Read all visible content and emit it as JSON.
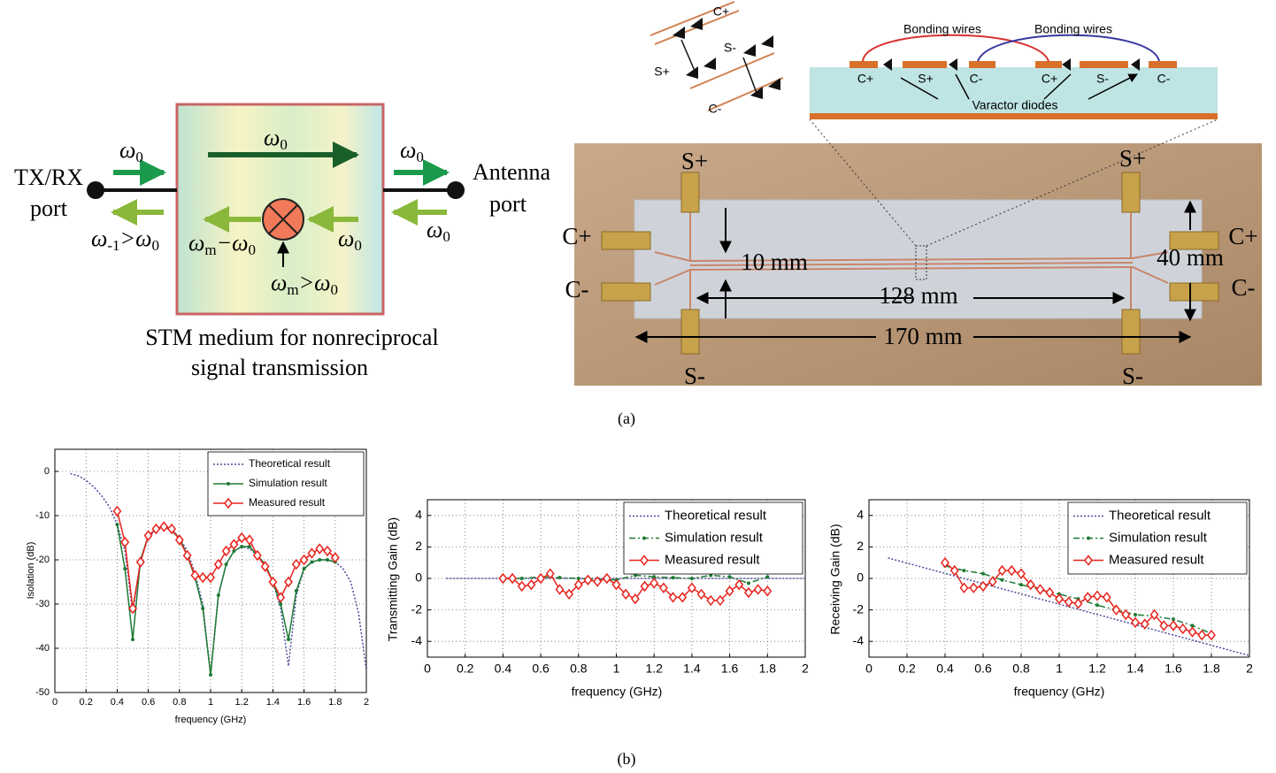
{
  "diagram": {
    "left_port": [
      "TX/RX",
      "port"
    ],
    "right_port": [
      "Antenna",
      "port"
    ],
    "omegas": [
      [
        {
          "t": "ω"
        },
        {
          "sub": "0"
        }
      ],
      [
        {
          "t": "ω"
        },
        {
          "sub": "-1"
        },
        {
          "t": ">ω"
        },
        {
          "sub": "0"
        }
      ],
      [
        {
          "t": "ω"
        },
        {
          "sub": "0"
        }
      ],
      [
        {
          "t": "ω"
        },
        {
          "sub": "m"
        },
        {
          "t": "−ω"
        },
        {
          "sub": "0"
        }
      ],
      [
        {
          "t": "ω"
        },
        {
          "sub": "0"
        }
      ],
      [
        {
          "t": "ω"
        },
        {
          "sub": "m"
        },
        {
          "t": ">ω"
        },
        {
          "sub": "0"
        }
      ],
      [
        {
          "t": "ω"
        },
        {
          "sub": "0"
        }
      ],
      [
        {
          "t": "ω"
        },
        {
          "sub": "0"
        }
      ]
    ],
    "caption": [
      "STM  medium for nonreciprocal",
      "signal transmission"
    ],
    "photo_labels": [
      "S+",
      "S+",
      "C+",
      "C-",
      "C+",
      "C-",
      "S-",
      "S-",
      "10 mm",
      "128 mm",
      "40 mm",
      "170 mm"
    ],
    "inset_left_labels": [
      "C+",
      "S-",
      "S+",
      "C-"
    ],
    "inset_right_labels": [
      "Bonding wires",
      "Bonding wires",
      "C+",
      "S+",
      "C-",
      "C+",
      "S-",
      "C-",
      "Varactor diodes"
    ],
    "caption_a": "(a)",
    "caption_b": "(b)"
  },
  "chart_data": [
    {
      "type": "line",
      "xlabel": "frequency (GHz)",
      "ylabel": "Isolation (dB)",
      "xlim": [
        0,
        2
      ],
      "xticks": [
        0,
        0.2,
        0.4,
        0.6,
        0.8,
        1,
        1.2,
        1.4,
        1.6,
        1.8,
        2
      ],
      "ylim": [
        -50,
        5
      ],
      "yticks": [
        0,
        -10,
        -20,
        -30,
        -40,
        -50
      ],
      "grid": true,
      "legend": "upper right",
      "series": [
        {
          "name": "Theoretical result",
          "color": "#4b4b9c",
          "style": "dotted",
          "marker": "none",
          "x": [
            0.1,
            0.15,
            0.2,
            0.25,
            0.3,
            0.35,
            0.4,
            0.45,
            0.5,
            0.55,
            0.6,
            0.65,
            0.7,
            0.75,
            0.8,
            0.85,
            0.9,
            0.95,
            1.0,
            1.05,
            1.1,
            1.15,
            1.2,
            1.25,
            1.3,
            1.35,
            1.4,
            1.45,
            1.5,
            1.55,
            1.6,
            1.65,
            1.7,
            1.75,
            1.8,
            1.85,
            1.9,
            1.95,
            2.0
          ],
          "values": [
            -0.5,
            -1,
            -2,
            -3.5,
            -5.5,
            -8,
            -12,
            -18,
            -32,
            -20,
            -15,
            -13,
            -12.5,
            -13,
            -15,
            -18,
            -23,
            -30,
            -46,
            -28,
            -21,
            -18,
            -17,
            -17.5,
            -19,
            -21,
            -25,
            -31,
            -44,
            -28,
            -22,
            -20.5,
            -20,
            -20,
            -20.5,
            -22,
            -25,
            -32,
            -45
          ]
        },
        {
          "name": "Simulation result",
          "color": "#1e7a34",
          "style": "solid",
          "marker": "dot",
          "x": [
            0.4,
            0.45,
            0.5,
            0.55,
            0.6,
            0.65,
            0.7,
            0.75,
            0.8,
            0.85,
            0.9,
            0.95,
            1.0,
            1.05,
            1.1,
            1.15,
            1.2,
            1.25,
            1.3,
            1.35,
            1.4,
            1.45,
            1.5,
            1.55,
            1.6,
            1.65,
            1.7,
            1.75,
            1.8
          ],
          "values": [
            -12,
            -22,
            -38,
            -20,
            -14.5,
            -13,
            -12.5,
            -13.5,
            -15,
            -19,
            -24,
            -31,
            -46,
            -28,
            -21,
            -18,
            -17,
            -17,
            -19,
            -21,
            -25,
            -30,
            -38,
            -27,
            -22,
            -20.5,
            -20,
            -20,
            -20.5
          ]
        },
        {
          "name": "Measured result",
          "color": "#e8231d",
          "style": "solid",
          "marker": "diamond",
          "x": [
            0.4,
            0.45,
            0.5,
            0.55,
            0.6,
            0.65,
            0.7,
            0.75,
            0.8,
            0.85,
            0.9,
            0.95,
            1.0,
            1.05,
            1.1,
            1.15,
            1.2,
            1.25,
            1.3,
            1.35,
            1.4,
            1.45,
            1.5,
            1.55,
            1.6,
            1.65,
            1.7,
            1.75,
            1.8
          ],
          "values": [
            -9,
            -16,
            -31,
            -20.5,
            -14.5,
            -13,
            -12.5,
            -13,
            -15.5,
            -19,
            -23.5,
            -24,
            -24,
            -21,
            -18,
            -16.5,
            -15,
            -15.5,
            -19,
            -21.5,
            -25,
            -28.5,
            -25,
            -21,
            -20,
            -18.5,
            -17.5,
            -18,
            -19.5
          ]
        }
      ]
    },
    {
      "type": "line",
      "xlabel": "frequency (GHz)",
      "ylabel": "Transmitting Gain (dB)",
      "xlim": [
        0,
        2
      ],
      "xticks": [
        0,
        0.2,
        0.4,
        0.6,
        0.8,
        1,
        1.2,
        1.4,
        1.6,
        1.8,
        2
      ],
      "ylim": [
        -5,
        5
      ],
      "yticks": [
        4,
        2,
        0,
        -2,
        -4
      ],
      "grid": true,
      "legend": "upper right",
      "series": [
        {
          "name": "Theoretical result",
          "color": "#4b4b9c",
          "style": "dotted",
          "marker": "none",
          "x": [
            0.1,
            2
          ],
          "values": [
            0,
            0
          ]
        },
        {
          "name": "Simulation result",
          "color": "#1e7a34",
          "style": "dash-dot",
          "marker": "dot",
          "x": [
            0.4,
            0.5,
            0.6,
            0.7,
            0.8,
            0.9,
            1.0,
            1.1,
            1.2,
            1.3,
            1.4,
            1.5,
            1.6,
            1.7,
            1.8
          ],
          "values": [
            0,
            0,
            0.1,
            0.05,
            0,
            -0.05,
            -0.1,
            0.2,
            0.1,
            0.05,
            0,
            0.2,
            0.1,
            -0.3,
            0.1
          ]
        },
        {
          "name": "Measured result",
          "color": "#e8231d",
          "style": "solid",
          "marker": "diamond",
          "x": [
            0.4,
            0.45,
            0.5,
            0.55,
            0.6,
            0.65,
            0.7,
            0.75,
            0.8,
            0.85,
            0.9,
            0.95,
            1.0,
            1.05,
            1.1,
            1.15,
            1.2,
            1.25,
            1.3,
            1.35,
            1.4,
            1.45,
            1.5,
            1.55,
            1.6,
            1.65,
            1.7,
            1.75,
            1.8
          ],
          "values": [
            0,
            0,
            -0.5,
            -0.4,
            0,
            0.3,
            -0.7,
            -1.0,
            -0.4,
            -0.1,
            -0.2,
            0,
            -0.4,
            -1.0,
            -1.3,
            -0.5,
            -0.3,
            -0.6,
            -1.2,
            -1.2,
            -0.6,
            -1.0,
            -1.4,
            -1.4,
            -0.8,
            -0.4,
            -0.9,
            -0.7,
            -0.8
          ]
        }
      ]
    },
    {
      "type": "line",
      "xlabel": "frequency (GHz)",
      "ylabel": "Receiving Gain (dB)",
      "xlim": [
        0,
        2
      ],
      "xticks": [
        0,
        0.2,
        0.4,
        0.6,
        0.8,
        1,
        1.2,
        1.4,
        1.6,
        1.8,
        2
      ],
      "ylim": [
        -5,
        5
      ],
      "yticks": [
        4,
        2,
        0,
        -2,
        -4
      ],
      "grid": true,
      "legend": "upper right",
      "series": [
        {
          "name": "Theoretical result",
          "color": "#4b4b9c",
          "style": "dotted",
          "marker": "none",
          "x": [
            0.1,
            2
          ],
          "values": [
            1.3,
            -4.9
          ]
        },
        {
          "name": "Simulation result",
          "color": "#1e7a34",
          "style": "dash-dot",
          "marker": "dot",
          "x": [
            0.4,
            0.5,
            0.6,
            0.7,
            0.8,
            0.9,
            1.0,
            1.1,
            1.2,
            1.3,
            1.4,
            1.5,
            1.6,
            1.7,
            1.8
          ],
          "values": [
            0.8,
            0.5,
            0.3,
            -0.1,
            -0.4,
            -0.7,
            -1.0,
            -1.3,
            -1.7,
            -2.0,
            -2.3,
            -2.4,
            -2.6,
            -3.0,
            -3.5
          ]
        },
        {
          "name": "Measured result",
          "color": "#e8231d",
          "style": "solid",
          "marker": "diamond",
          "x": [
            0.4,
            0.45,
            0.5,
            0.55,
            0.6,
            0.65,
            0.7,
            0.75,
            0.8,
            0.85,
            0.9,
            0.95,
            1.0,
            1.05,
            1.1,
            1.15,
            1.2,
            1.25,
            1.3,
            1.35,
            1.4,
            1.45,
            1.5,
            1.55,
            1.6,
            1.65,
            1.7,
            1.75,
            1.8
          ],
          "values": [
            1.0,
            0.5,
            -0.6,
            -0.6,
            -0.5,
            -0.2,
            0.5,
            0.5,
            0.3,
            -0.4,
            -0.7,
            -0.9,
            -1.3,
            -1.5,
            -1.6,
            -1.2,
            -1.1,
            -1.2,
            -2.0,
            -2.3,
            -2.8,
            -2.9,
            -2.3,
            -3.0,
            -3.0,
            -3.2,
            -3.4,
            -3.6,
            -3.6
          ]
        }
      ]
    }
  ]
}
